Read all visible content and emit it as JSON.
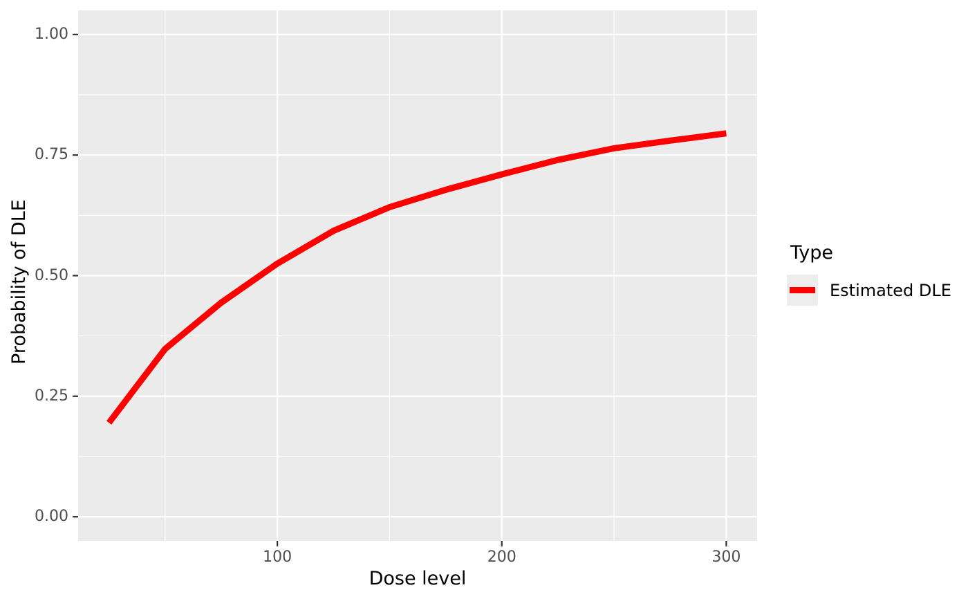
{
  "figure": {
    "background": "#FFFFFF",
    "panel_background": "#EBEBEB",
    "gridline_color": "#FFFFFF",
    "tick_mark_color": "#333333",
    "tick_label_color": "#4D4D4D",
    "text_color": "#000000",
    "line_color": "#FF0000",
    "legend_key_background": "#EDEDED"
  },
  "chart_data": {
    "type": "line",
    "title": "",
    "xlabel": "Dose level",
    "ylabel": "Probability of DLE",
    "xlim": [
      11.25,
      313.75
    ],
    "ylim": [
      -0.05,
      1.05
    ],
    "grid": true,
    "x_ticks": [
      {
        "value": 100,
        "label": "100"
      },
      {
        "value": 200,
        "label": "200"
      },
      {
        "value": 300,
        "label": "300"
      }
    ],
    "y_ticks": [
      {
        "value": 0.0,
        "label": "0.00"
      },
      {
        "value": 0.25,
        "label": "0.25"
      },
      {
        "value": 0.5,
        "label": "0.50"
      },
      {
        "value": 0.75,
        "label": "0.75"
      },
      {
        "value": 1.0,
        "label": "1.00"
      }
    ],
    "x_minor_ticks": [
      50,
      150,
      250
    ],
    "y_minor_ticks": [
      0.125,
      0.375,
      0.625,
      0.875
    ],
    "legend": {
      "title": "Type",
      "position": "right",
      "entries": [
        {
          "label": "Estimated DLE",
          "color": "#FF0000"
        }
      ]
    },
    "series": [
      {
        "name": "Estimated DLE",
        "color": "#FF0000",
        "x": [
          25,
          50,
          75,
          100,
          125,
          150,
          175,
          200,
          225,
          250,
          275,
          300
        ],
        "y": [
          0.195,
          0.348,
          0.444,
          0.525,
          0.593,
          0.642,
          0.678,
          0.71,
          0.74,
          0.764,
          0.78,
          0.795
        ]
      }
    ]
  }
}
